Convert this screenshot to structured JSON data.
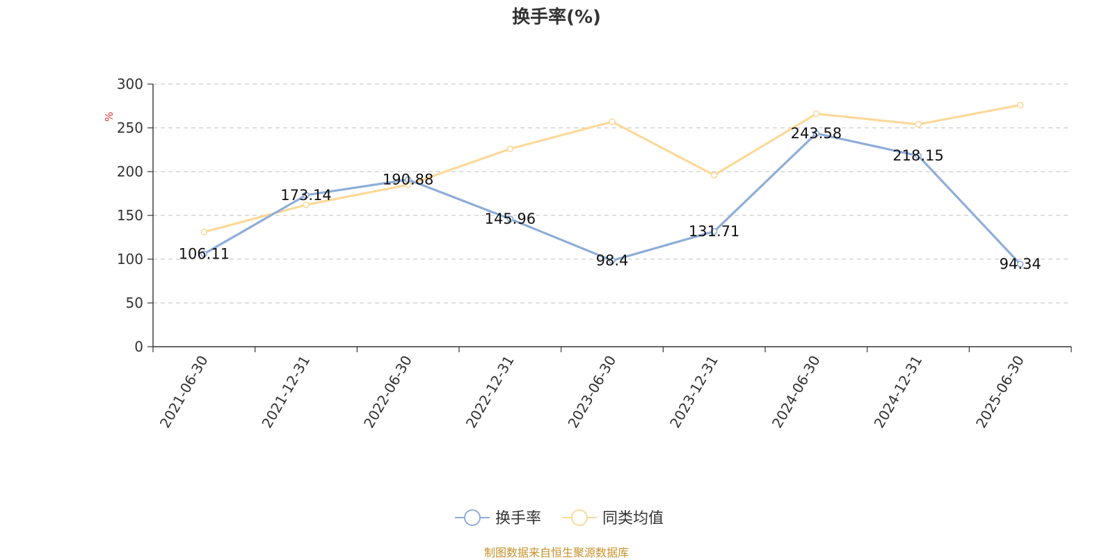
{
  "chart_data": {
    "type": "line",
    "title": "换手率(%)",
    "ylabel": "%",
    "ylim": [
      0,
      300
    ],
    "yticks": [
      0,
      50,
      100,
      150,
      200,
      250,
      300
    ],
    "grid": true,
    "legend_position": "bottom",
    "categories": [
      "2021-06-30",
      "2021-12-31",
      "2022-06-30",
      "2022-12-31",
      "2023-06-30",
      "2023-12-31",
      "2024-06-30",
      "2024-12-31",
      "2025-06-30"
    ],
    "series": [
      {
        "name": "换手率",
        "color": "#8eadd8",
        "values": [
          106.11,
          173.14,
          190.88,
          145.96,
          98.4,
          131.71,
          243.58,
          218.15,
          94.34
        ],
        "labels": [
          "106.11",
          "173.14",
          "190.88",
          "145.96",
          "98.4",
          "131.71",
          "243.58",
          "218.15",
          "94.34"
        ]
      },
      {
        "name": "同类均值",
        "color": "#fcd999",
        "values": [
          131,
          162,
          185,
          226,
          257,
          196,
          266,
          254,
          276
        ]
      }
    ]
  },
  "source": "制图数据来自恒生聚源数据库"
}
